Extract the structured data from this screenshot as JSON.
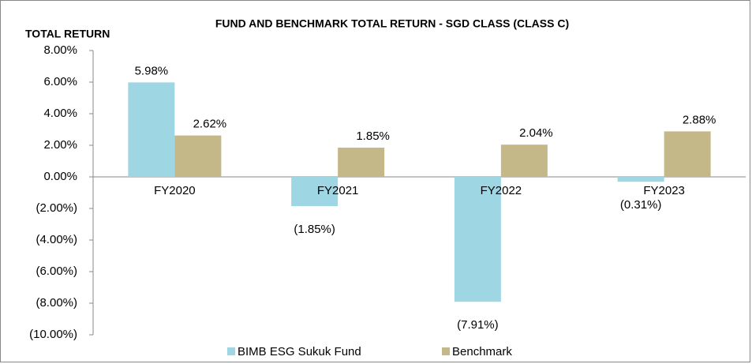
{
  "chart_data": {
    "type": "bar",
    "title": "FUND AND BENCHMARK TOTAL RETURN - SGD CLASS (CLASS C)",
    "y_label": "TOTAL RETURN",
    "categories": [
      "FY2020",
      "FY2021",
      "FY2022",
      "FY2023"
    ],
    "series": [
      {
        "name": "BIMB ESG Sukuk Fund",
        "color": "#9fd6e4",
        "values": [
          5.98,
          -1.85,
          -7.91,
          -0.31
        ],
        "value_labels": [
          "5.98%",
          "(1.85%)",
          "(7.91%)",
          "(0.31%)"
        ]
      },
      {
        "name": "Benchmark",
        "color": "#c4b788",
        "values": [
          2.62,
          1.85,
          2.04,
          2.88
        ],
        "value_labels": [
          "2.62%",
          "1.85%",
          "2.04%",
          "2.88%"
        ]
      }
    ],
    "ylim": [
      -10,
      8
    ],
    "yticks": [
      {
        "value": -10,
        "label": "(10.00%)"
      },
      {
        "value": -8,
        "label": "(8.00%)"
      },
      {
        "value": -6,
        "label": "(6.00%)"
      },
      {
        "value": -4,
        "label": "(4.00%)"
      },
      {
        "value": -2,
        "label": "(2.00%)"
      },
      {
        "value": 0,
        "label": "0.00%"
      },
      {
        "value": 2,
        "label": "2.00%"
      },
      {
        "value": 4,
        "label": "4.00%"
      },
      {
        "value": 6,
        "label": "6.00%"
      },
      {
        "value": 8,
        "label": "8.00%"
      }
    ],
    "grid": false,
    "legend": "bottom"
  }
}
